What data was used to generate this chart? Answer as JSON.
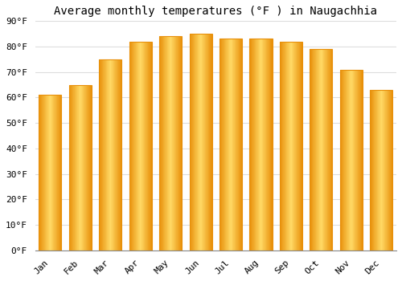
{
  "title": "Average monthly temperatures (°F ) in Naugachhia",
  "months": [
    "Jan",
    "Feb",
    "Mar",
    "Apr",
    "May",
    "Jun",
    "Jul",
    "Aug",
    "Sep",
    "Oct",
    "Nov",
    "Dec"
  ],
  "values": [
    61,
    65,
    75,
    82,
    84,
    85,
    83,
    83,
    82,
    79,
    71,
    63
  ],
  "bar_color_center": "#FFD966",
  "bar_color_edge": "#E8900A",
  "background_color": "#FFFFFF",
  "plot_bg_color": "#FFFFFF",
  "ylim": [
    0,
    90
  ],
  "yticks": [
    0,
    10,
    20,
    30,
    40,
    50,
    60,
    70,
    80,
    90
  ],
  "title_fontsize": 10,
  "tick_fontsize": 8,
  "grid_color": "#DDDDDD",
  "font_family": "monospace",
  "bar_width": 0.75
}
